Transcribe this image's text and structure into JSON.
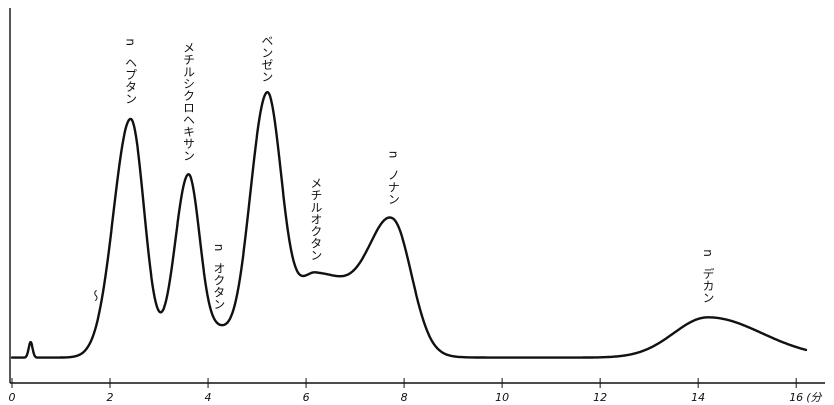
{
  "chart_data": {
    "type": "line",
    "title": "",
    "xlabel": "",
    "ylabel": "",
    "x_unit_label": "(分",
    "xlim": [
      0,
      16.2
    ],
    "ylim": [
      0,
      100
    ],
    "x_ticks": [
      0,
      2,
      4,
      6,
      8,
      10,
      12,
      14,
      16
    ],
    "x_tick_labels": [
      "0",
      "2",
      "4",
      "6",
      "8",
      "10",
      "12",
      "14",
      "16"
    ],
    "grid": false,
    "baseline": 4,
    "injection_spike": {
      "x": 0.38,
      "height": 5
    },
    "injection_mark": {
      "x": 1.7,
      "y": 26,
      "text": "〜"
    },
    "peaks": [
      {
        "name": "n-ヘプタン",
        "label_lines": [
          "n",
          "ヘプタン"
        ],
        "retention_time": 2.42,
        "height": 77,
        "left_width": 0.35,
        "right_width": 0.28
      },
      {
        "name": "メチルシクロヘキサン",
        "label_lines": [
          "メチルシクロヘキサン"
        ],
        "retention_time": 3.6,
        "height": 59,
        "left_width": 0.28,
        "right_width": 0.24
      },
      {
        "name": "n-オクタン",
        "label_lines": [
          "n",
          "オクタン"
        ],
        "retention_time": 4.22,
        "height": 7,
        "left_width": 0.22,
        "right_width": 0.22
      },
      {
        "name": "ベンゼン",
        "label_lines": [
          "ベンゼン"
        ],
        "retention_time": 5.2,
        "height": 84,
        "left_width": 0.35,
        "right_width": 0.3
      },
      {
        "name": "メチルオクタン",
        "label_lines": [
          "メチルオクタン"
        ],
        "retention_time": 6.2,
        "height": 27,
        "left_width": 0.42,
        "right_width": 0.9
      },
      {
        "name": "n-ノナン",
        "label_lines": [
          "n",
          "ノナン"
        ],
        "retention_time": 7.78,
        "height": 39,
        "left_width": 0.48,
        "right_width": 0.38
      },
      {
        "name": "n-デカン",
        "label_lines": [
          "n",
          "デカン"
        ],
        "retention_time": 14.2,
        "height": 13,
        "left_width": 0.7,
        "right_width": 1.1
      }
    ]
  }
}
